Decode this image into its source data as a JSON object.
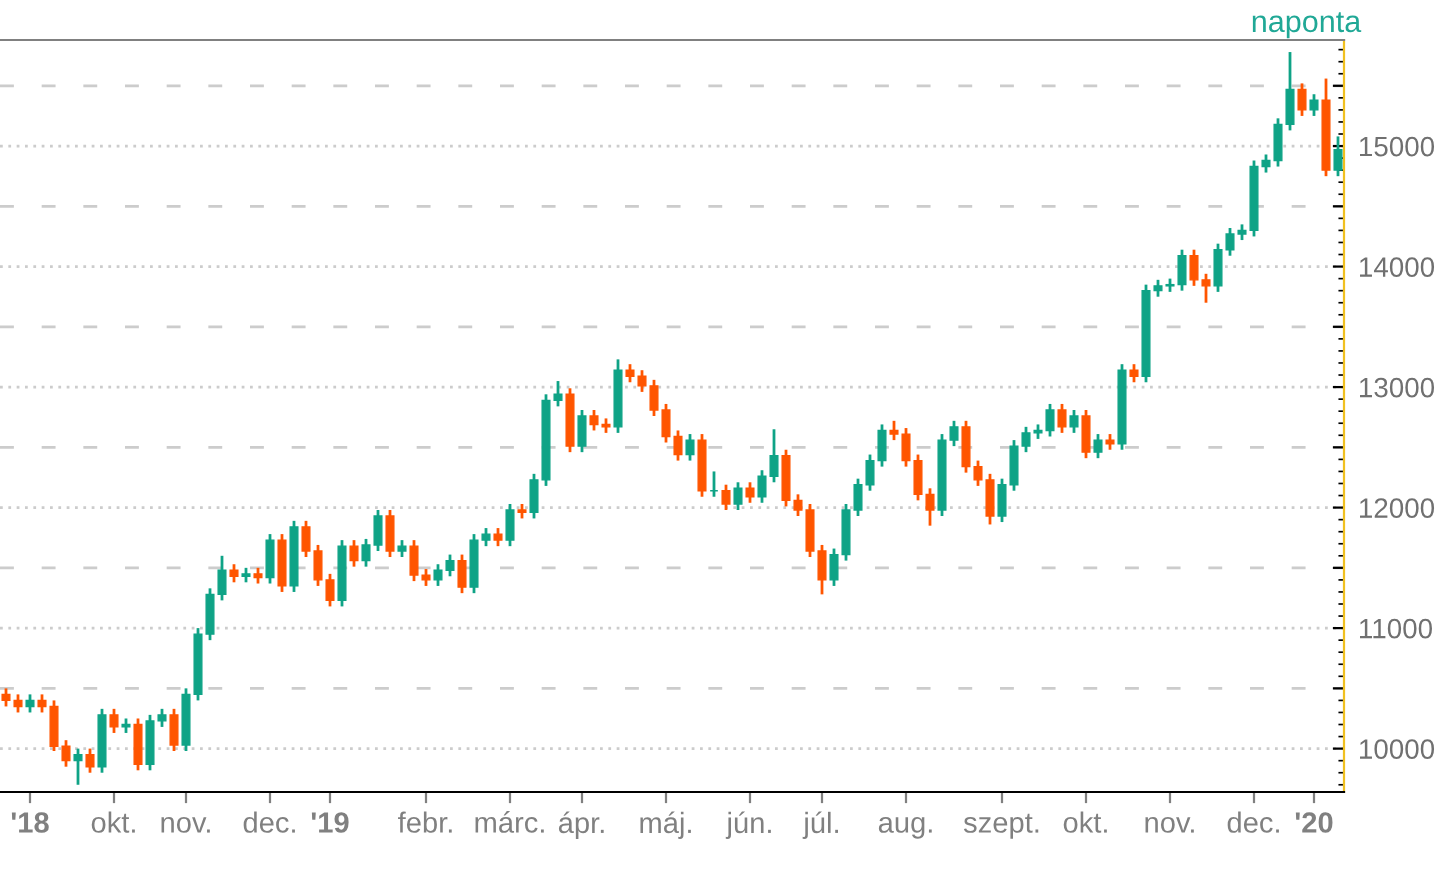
{
  "chart_data": {
    "type": "candlestick",
    "subtitle": "naponta",
    "categories": [
      null,
      null,
      "'18",
      null,
      null,
      null,
      null,
      null,
      null,
      "okt.",
      null,
      null,
      null,
      null,
      null,
      "nov.",
      null,
      null,
      null,
      null,
      null,
      null,
      "dec.",
      null,
      null,
      null,
      null,
      "'19",
      null,
      null,
      null,
      null,
      null,
      null,
      null,
      "febr.",
      null,
      null,
      null,
      null,
      null,
      null,
      "márc.",
      null,
      null,
      null,
      null,
      null,
      "ápr.",
      null,
      null,
      null,
      null,
      null,
      null,
      "máj.",
      null,
      null,
      null,
      null,
      null,
      null,
      "jún.",
      null,
      null,
      null,
      null,
      null,
      "júl.",
      null,
      null,
      null,
      null,
      null,
      null,
      "aug.",
      null,
      null,
      null,
      null,
      null,
      null,
      null,
      "szept.",
      null,
      null,
      null,
      null,
      null,
      null,
      "okt.",
      null,
      null,
      null,
      null,
      null,
      null,
      "nov.",
      null,
      null,
      null,
      null,
      null,
      null,
      "dec.",
      null,
      null,
      null,
      null,
      "'20",
      null,
      null
    ],
    "ohlc": [
      [
        10450,
        10500,
        10350,
        10400
      ],
      [
        10400,
        10450,
        10300,
        10350
      ],
      [
        10350,
        10450,
        10300,
        10400
      ],
      [
        10400,
        10450,
        10300,
        10350
      ],
      [
        10350,
        10400,
        9980,
        10020
      ],
      [
        10020,
        10070,
        9850,
        9900
      ],
      [
        9900,
        10000,
        9700,
        9950
      ],
      [
        9950,
        10000,
        9800,
        9850
      ],
      [
        9850,
        10330,
        9800,
        10280
      ],
      [
        10280,
        10330,
        10130,
        10180
      ],
      [
        10180,
        10250,
        10130,
        10200
      ],
      [
        10200,
        10250,
        9820,
        9870
      ],
      [
        9870,
        10280,
        9820,
        10230
      ],
      [
        10230,
        10330,
        10180,
        10280
      ],
      [
        10280,
        10330,
        9980,
        10030
      ],
      [
        10030,
        10500,
        9980,
        10450
      ],
      [
        10450,
        11000,
        10400,
        10950
      ],
      [
        10950,
        11330,
        10900,
        11280
      ],
      [
        11280,
        11600,
        11230,
        11480
      ],
      [
        11480,
        11530,
        11380,
        11430
      ],
      [
        11430,
        11500,
        11380,
        11450
      ],
      [
        11450,
        11500,
        11370,
        11420
      ],
      [
        11420,
        11780,
        11370,
        11730
      ],
      [
        11730,
        11780,
        11300,
        11350
      ],
      [
        11350,
        11890,
        11300,
        11840
      ],
      [
        11840,
        11890,
        11590,
        11640
      ],
      [
        11640,
        11690,
        11350,
        11400
      ],
      [
        11400,
        11450,
        11180,
        11230
      ],
      [
        11230,
        11730,
        11180,
        11680
      ],
      [
        11680,
        11730,
        11510,
        11560
      ],
      [
        11560,
        11740,
        11510,
        11690
      ],
      [
        11690,
        11980,
        11640,
        11930
      ],
      [
        11930,
        11980,
        11590,
        11640
      ],
      [
        11640,
        11730,
        11590,
        11680
      ],
      [
        11680,
        11730,
        11390,
        11440
      ],
      [
        11440,
        11490,
        11350,
        11400
      ],
      [
        11400,
        11530,
        11350,
        11480
      ],
      [
        11480,
        11610,
        11430,
        11560
      ],
      [
        11560,
        11610,
        11290,
        11340
      ],
      [
        11340,
        11780,
        11290,
        11730
      ],
      [
        11730,
        11830,
        11680,
        11780
      ],
      [
        11780,
        11830,
        11680,
        11730
      ],
      [
        11730,
        12030,
        11680,
        11980
      ],
      [
        11980,
        12030,
        11910,
        11960
      ],
      [
        11960,
        12280,
        11910,
        12230
      ],
      [
        12230,
        12940,
        12180,
        12890
      ],
      [
        12890,
        13050,
        12840,
        12940
      ],
      [
        12940,
        12990,
        12460,
        12510
      ],
      [
        12510,
        12810,
        12460,
        12760
      ],
      [
        12760,
        12810,
        12640,
        12690
      ],
      [
        12690,
        12740,
        12620,
        12670
      ],
      [
        12670,
        13230,
        12620,
        13140
      ],
      [
        13140,
        13190,
        13040,
        13090
      ],
      [
        13090,
        13140,
        12960,
        13010
      ],
      [
        13010,
        13060,
        12760,
        12810
      ],
      [
        12810,
        12860,
        12540,
        12590
      ],
      [
        12590,
        12640,
        12390,
        12440
      ],
      [
        12440,
        12610,
        12390,
        12560
      ],
      [
        12560,
        12610,
        12090,
        12140
      ],
      [
        12140,
        12300,
        12090,
        12140
      ],
      [
        12140,
        12190,
        11980,
        12030
      ],
      [
        12030,
        12210,
        11980,
        12160
      ],
      [
        12160,
        12210,
        12040,
        12090
      ],
      [
        12090,
        12310,
        12040,
        12260
      ],
      [
        12260,
        12650,
        12210,
        12430
      ],
      [
        12430,
        12480,
        12010,
        12060
      ],
      [
        12060,
        12110,
        11930,
        11980
      ],
      [
        11980,
        12030,
        11590,
        11640
      ],
      [
        11640,
        11690,
        11280,
        11400
      ],
      [
        11400,
        11660,
        11350,
        11610
      ],
      [
        11610,
        12030,
        11560,
        11980
      ],
      [
        11980,
        12240,
        11930,
        12190
      ],
      [
        12190,
        12440,
        12140,
        12390
      ],
      [
        12390,
        12690,
        12340,
        12640
      ],
      [
        12640,
        12720,
        12560,
        12610
      ],
      [
        12610,
        12660,
        12340,
        12390
      ],
      [
        12390,
        12440,
        12060,
        12110
      ],
      [
        12110,
        12160,
        11850,
        11980
      ],
      [
        11980,
        12610,
        11930,
        12560
      ],
      [
        12560,
        12720,
        12510,
        12670
      ],
      [
        12670,
        12720,
        12290,
        12340
      ],
      [
        12340,
        12390,
        12180,
        12230
      ],
      [
        12230,
        12280,
        11860,
        11930
      ],
      [
        11930,
        12240,
        11880,
        12190
      ],
      [
        12190,
        12560,
        12140,
        12510
      ],
      [
        12510,
        12670,
        12460,
        12620
      ],
      [
        12620,
        12690,
        12570,
        12640
      ],
      [
        12640,
        12860,
        12590,
        12810
      ],
      [
        12810,
        12860,
        12620,
        12670
      ],
      [
        12670,
        12810,
        12620,
        12760
      ],
      [
        12760,
        12810,
        12410,
        12460
      ],
      [
        12460,
        12610,
        12410,
        12560
      ],
      [
        12560,
        12610,
        12480,
        12530
      ],
      [
        12530,
        13190,
        12480,
        13140
      ],
      [
        13140,
        13190,
        13040,
        13090
      ],
      [
        13090,
        13850,
        13040,
        13800
      ],
      [
        13800,
        13890,
        13750,
        13840
      ],
      [
        13840,
        13900,
        13790,
        13850
      ],
      [
        13850,
        14140,
        13800,
        14090
      ],
      [
        14090,
        14140,
        13840,
        13890
      ],
      [
        13890,
        13940,
        13700,
        13840
      ],
      [
        13840,
        14190,
        13790,
        14140
      ],
      [
        14140,
        14320,
        14090,
        14270
      ],
      [
        14270,
        14350,
        14220,
        14300
      ],
      [
        14300,
        14880,
        14250,
        14830
      ],
      [
        14830,
        14930,
        14780,
        14880
      ],
      [
        14880,
        15230,
        14830,
        15180
      ],
      [
        15180,
        15780,
        15130,
        15470
      ],
      [
        15470,
        15520,
        15250,
        15300
      ],
      [
        15300,
        15430,
        15250,
        15380
      ],
      [
        15380,
        15560,
        14750,
        14800
      ],
      [
        14800,
        15080,
        14750,
        14970
      ]
    ],
    "colors": [
      "#ff5500",
      "#ff5500",
      "#0fa386",
      "#ff5500",
      "#ff5500",
      "#ff5500",
      "#0fa386",
      "#ff5500",
      "#0fa386",
      "#ff5500",
      "#0fa386",
      "#ff5500",
      "#0fa386",
      "#0fa386",
      "#ff5500",
      "#0fa386",
      "#0fa386",
      "#0fa386",
      "#0fa386",
      "#ff5500",
      "#0fa386",
      "#ff5500",
      "#0fa386",
      "#ff5500",
      "#0fa386",
      "#ff5500",
      "#ff5500",
      "#ff5500",
      "#0fa386",
      "#ff5500",
      "#0fa386",
      "#0fa386",
      "#ff5500",
      "#0fa386",
      "#ff5500",
      "#ff5500",
      "#0fa386",
      "#0fa386",
      "#ff5500",
      "#0fa386",
      "#0fa386",
      "#ff5500",
      "#0fa386",
      "#ff5500",
      "#0fa386",
      "#0fa386",
      "#0fa386",
      "#ff5500",
      "#0fa386",
      "#ff5500",
      "#ff5500",
      "#0fa386",
      "#ff5500",
      "#ff5500",
      "#ff5500",
      "#ff5500",
      "#ff5500",
      "#0fa386",
      "#ff5500",
      "#0fa386",
      "#ff5500",
      "#0fa386",
      "#ff5500",
      "#0fa386",
      "#0fa386",
      "#ff5500",
      "#ff5500",
      "#ff5500",
      "#ff5500",
      "#0fa386",
      "#0fa386",
      "#0fa386",
      "#0fa386",
      "#0fa386",
      "#ff5500",
      "#ff5500",
      "#ff5500",
      "#ff5500",
      "#0fa386",
      "#0fa386",
      "#ff5500",
      "#ff5500",
      "#ff5500",
      "#0fa386",
      "#0fa386",
      "#0fa386",
      "#0fa386",
      "#0fa386",
      "#ff5500",
      "#0fa386",
      "#ff5500",
      "#0fa386",
      "#ff5500",
      "#0fa386",
      "#ff5500",
      "#0fa386",
      "#0fa386",
      "#0fa386",
      "#0fa386",
      "#ff5500",
      "#ff5500",
      "#0fa386",
      "#0fa386",
      "#0fa386",
      "#0fa386",
      "#0fa386",
      "#0fa386",
      "#0fa386",
      "#ff5500",
      "#0fa386",
      "#ff5500",
      "#0fa386"
    ],
    "ylim": [
      9640,
      15880
    ],
    "yticks": [
      10000,
      {
        "value": 10500,
        "label": null
      },
      11000,
      {
        "value": 11500,
        "label": null
      },
      12000,
      {
        "value": 12500,
        "label": null
      },
      13000,
      {
        "value": 13500,
        "label": null
      },
      14000,
      {
        "value": 14500,
        "label": null
      },
      15000,
      {
        "value": 15500,
        "label": null
      }
    ],
    "grid": "y"
  }
}
